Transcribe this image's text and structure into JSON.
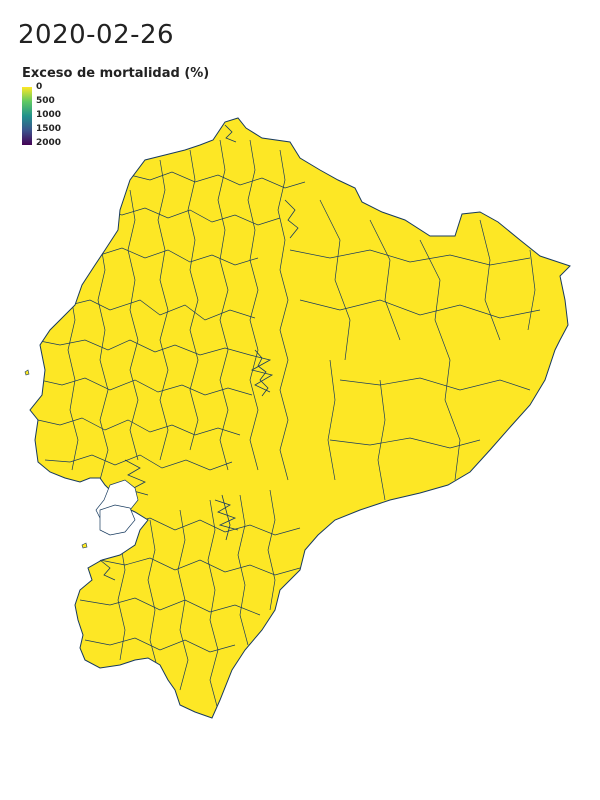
{
  "map": {
    "date": "2020-02-26",
    "legend": {
      "title": "Exceso de mortalidad (%)",
      "ticks": [
        "0",
        "500",
        "1000",
        "1500",
        "2000"
      ],
      "domain": [
        0,
        2000
      ],
      "colors": [
        "#fde725",
        "#5ec962",
        "#21918c",
        "#3b528b",
        "#440154"
      ]
    },
    "region_value": 0,
    "fill_color": "#fde725",
    "border_color": "#173a5e"
  }
}
